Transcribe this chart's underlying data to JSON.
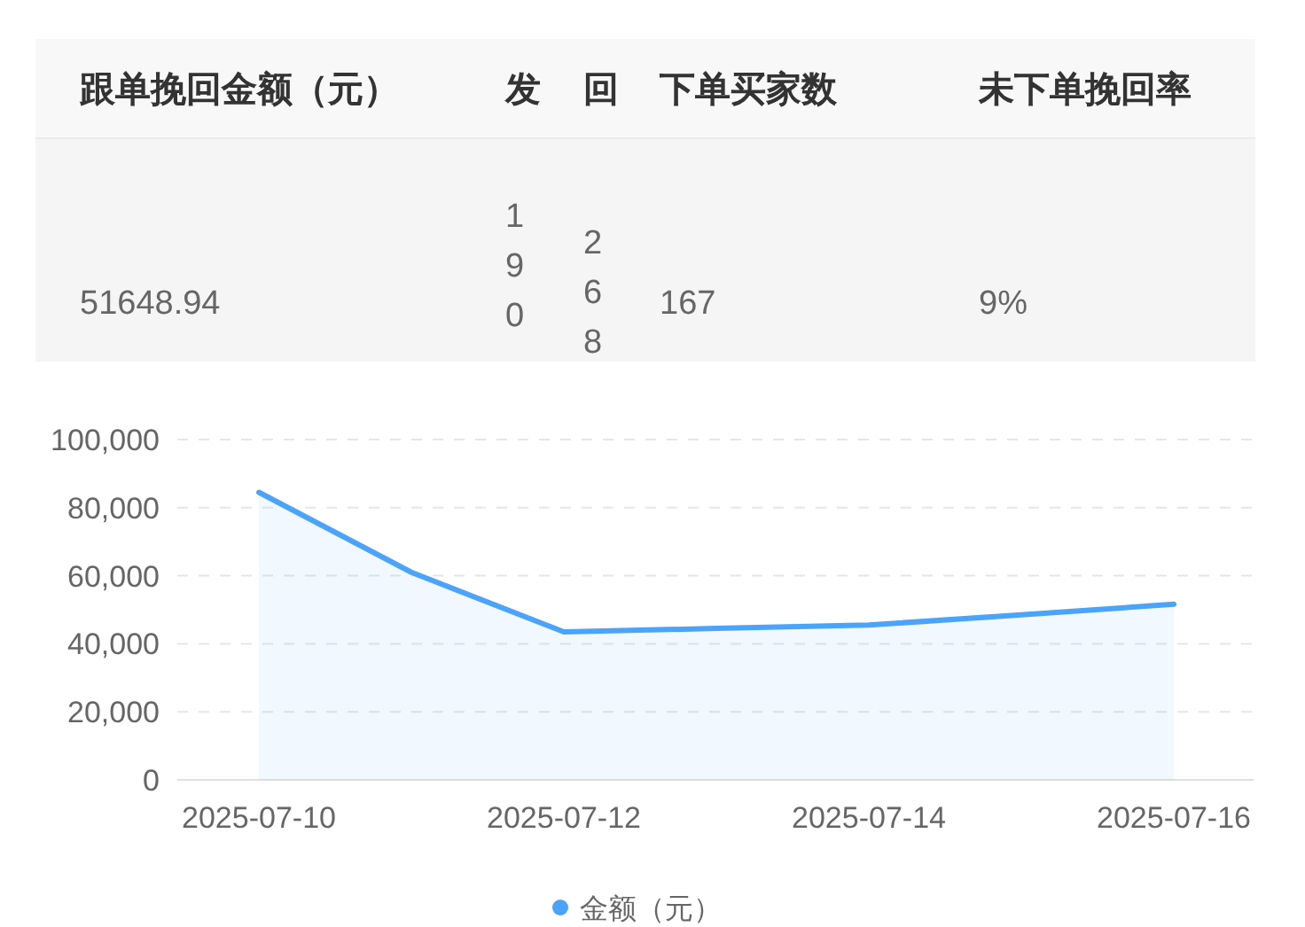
{
  "chart_data": [
    {
      "type": "other",
      "categories": [
        "跟单挽回金额（元）",
        "发",
        "回",
        "下单买家数",
        "未下单挽回率"
      ],
      "annotations": [
        "51648.94",
        "190",
        "268",
        "167",
        "9%"
      ]
    },
    {
      "type": "area",
      "categories": [
        "2025-07-10",
        null,
        "2025-07-12",
        null,
        "2025-07-14",
        null,
        "2025-07-16"
      ],
      "series": [
        {
          "name": "金额（元）",
          "color": "#4ba3fa",
          "values": [
            84500,
            61000,
            43500,
            44500,
            45500,
            48500,
            51600
          ]
        }
      ],
      "ylim": [
        0,
        100000
      ],
      "yticks": [
        {
          "value": 0,
          "label": "0"
        },
        {
          "value": 20000,
          "label": "20,000"
        },
        {
          "value": 40000,
          "label": "40,000"
        },
        {
          "value": 60000,
          "label": "60,000"
        },
        {
          "value": 80000,
          "label": "80,000"
        },
        {
          "value": 100000,
          "label": "100,000"
        }
      ],
      "grid": "y",
      "legend": "bottom"
    }
  ]
}
